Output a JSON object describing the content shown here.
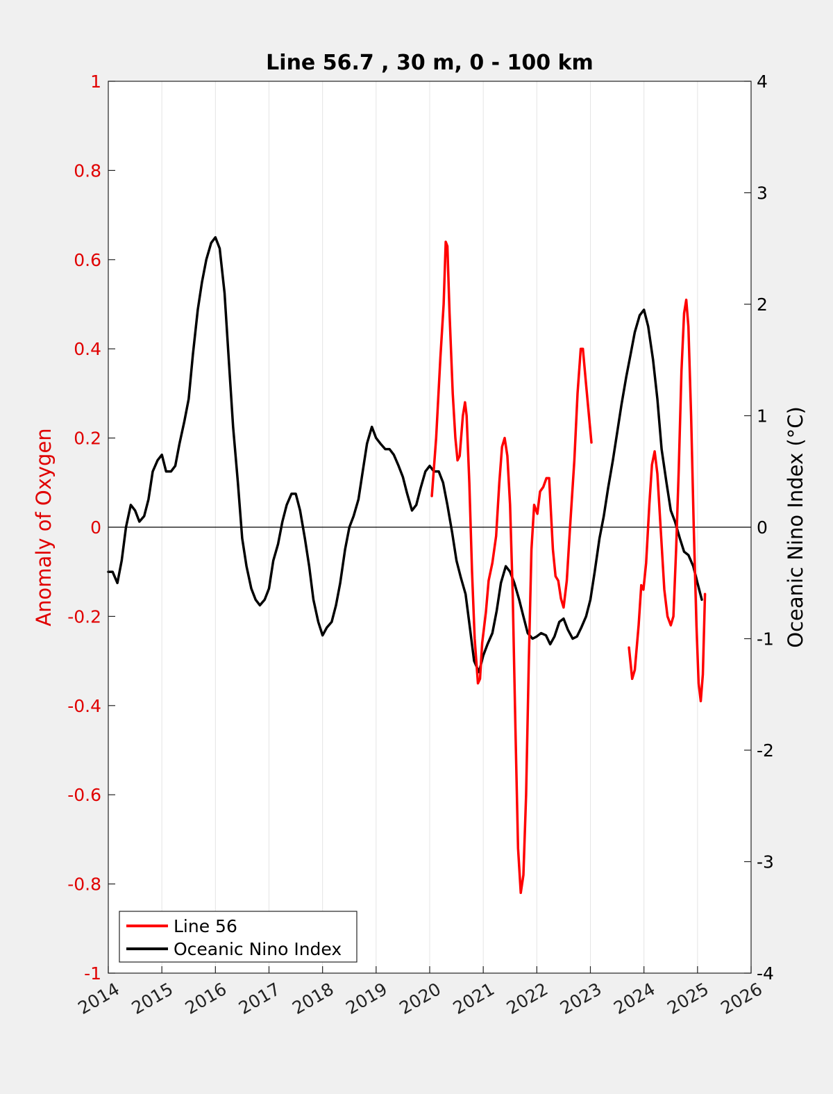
{
  "chart_data": {
    "type": "line",
    "title": "Line 56.7 , 30 m, 0 - 100 km",
    "xlabel": "",
    "ylabel_left": "Anomaly of Oxygen",
    "ylabel_right": "Oceanic Nino Index (°C)",
    "xlim": [
      2014,
      2026
    ],
    "ylim_left": [
      -1,
      1
    ],
    "ylim_right": [
      -4,
      4
    ],
    "x_ticks": [
      "2014",
      "2015",
      "2016",
      "2017",
      "2018",
      "2019",
      "2020",
      "2021",
      "2022",
      "2023",
      "2024",
      "2025",
      "2026"
    ],
    "y_ticks_left": [
      "-1",
      "-0.8",
      "-0.6",
      "-0.4",
      "-0.2",
      "0",
      "0.2",
      "0.4",
      "0.6",
      "0.8",
      "1"
    ],
    "y_ticks_right": [
      "-4",
      "-3",
      "-2",
      "-1",
      "0",
      "1",
      "2",
      "3",
      "4"
    ],
    "grid": "vertical",
    "zero_line": true,
    "legend_position": "bottom-left",
    "series": [
      {
        "name": "Line 56",
        "axis": "left",
        "color": "#ff0000",
        "segments": [
          [
            [
              2020.04,
              0.07
            ],
            [
              2020.12,
              0.2
            ],
            [
              2020.2,
              0.38
            ],
            [
              2020.26,
              0.5
            ],
            [
              2020.3,
              0.64
            ],
            [
              2020.33,
              0.63
            ],
            [
              2020.37,
              0.48
            ],
            [
              2020.43,
              0.3
            ],
            [
              2020.48,
              0.2
            ],
            [
              2020.52,
              0.15
            ],
            [
              2020.56,
              0.16
            ],
            [
              2020.62,
              0.25
            ],
            [
              2020.66,
              0.28
            ],
            [
              2020.69,
              0.25
            ],
            [
              2020.74,
              0.1
            ],
            [
              2020.79,
              -0.1
            ],
            [
              2020.84,
              -0.25
            ],
            [
              2020.9,
              -0.35
            ],
            [
              2020.94,
              -0.34
            ],
            [
              2020.98,
              -0.26
            ],
            [
              2021.05,
              -0.19
            ],
            [
              2021.1,
              -0.12
            ],
            [
              2021.17,
              -0.08
            ],
            [
              2021.24,
              -0.02
            ],
            [
              2021.3,
              0.1
            ],
            [
              2021.35,
              0.18
            ],
            [
              2021.4,
              0.2
            ],
            [
              2021.45,
              0.16
            ],
            [
              2021.5,
              0.05
            ],
            [
              2021.55,
              -0.15
            ],
            [
              2021.6,
              -0.45
            ],
            [
              2021.65,
              -0.72
            ],
            [
              2021.7,
              -0.82
            ],
            [
              2021.75,
              -0.78
            ],
            [
              2021.8,
              -0.6
            ],
            [
              2021.85,
              -0.3
            ],
            [
              2021.9,
              -0.05
            ],
            [
              2021.95,
              0.05
            ],
            [
              2022.01,
              0.03
            ],
            [
              2022.06,
              0.08
            ],
            [
              2022.12,
              0.09
            ],
            [
              2022.18,
              0.11
            ],
            [
              2022.23,
              0.11
            ],
            [
              2022.3,
              -0.05
            ],
            [
              2022.35,
              -0.11
            ],
            [
              2022.4,
              -0.12
            ],
            [
              2022.45,
              -0.16
            ],
            [
              2022.5,
              -0.18
            ],
            [
              2022.56,
              -0.12
            ],
            [
              2022.62,
              0.0
            ],
            [
              2022.7,
              0.15
            ],
            [
              2022.76,
              0.3
            ],
            [
              2022.82,
              0.4
            ],
            [
              2022.86,
              0.4
            ],
            [
              2022.92,
              0.32
            ],
            [
              2023.02,
              0.19
            ]
          ],
          [
            [
              2023.72,
              -0.27
            ],
            [
              2023.78,
              -0.34
            ],
            [
              2023.83,
              -0.32
            ],
            [
              2023.9,
              -0.22
            ],
            [
              2023.95,
              -0.13
            ],
            [
              2023.99,
              -0.14
            ],
            [
              2024.04,
              -0.08
            ],
            [
              2024.1,
              0.05
            ],
            [
              2024.15,
              0.14
            ],
            [
              2024.2,
              0.17
            ],
            [
              2024.25,
              0.12
            ],
            [
              2024.32,
              -0.02
            ],
            [
              2024.38,
              -0.14
            ],
            [
              2024.44,
              -0.2
            ],
            [
              2024.5,
              -0.22
            ],
            [
              2024.55,
              -0.2
            ],
            [
              2024.6,
              -0.05
            ],
            [
              2024.65,
              0.13
            ],
            [
              2024.7,
              0.35
            ],
            [
              2024.75,
              0.48
            ],
            [
              2024.79,
              0.51
            ],
            [
              2024.83,
              0.45
            ],
            [
              2024.88,
              0.25
            ],
            [
              2024.93,
              0.0
            ],
            [
              2024.98,
              -0.22
            ],
            [
              2025.02,
              -0.35
            ],
            [
              2025.06,
              -0.39
            ],
            [
              2025.1,
              -0.33
            ],
            [
              2025.14,
              -0.15
            ]
          ]
        ]
      },
      {
        "name": "Oceanic Nino Index",
        "axis": "right",
        "color": "#000000",
        "points": [
          [
            2014.0,
            -0.4
          ],
          [
            2014.08,
            -0.4
          ],
          [
            2014.17,
            -0.5
          ],
          [
            2014.25,
            -0.3
          ],
          [
            2014.33,
            0.0
          ],
          [
            2014.42,
            0.2
          ],
          [
            2014.5,
            0.15
          ],
          [
            2014.58,
            0.05
          ],
          [
            2014.67,
            0.1
          ],
          [
            2014.75,
            0.25
          ],
          [
            2014.83,
            0.5
          ],
          [
            2014.92,
            0.6
          ],
          [
            2015.0,
            0.65
          ],
          [
            2015.08,
            0.5
          ],
          [
            2015.17,
            0.5
          ],
          [
            2015.25,
            0.55
          ],
          [
            2015.33,
            0.75
          ],
          [
            2015.42,
            0.95
          ],
          [
            2015.5,
            1.15
          ],
          [
            2015.58,
            1.55
          ],
          [
            2015.67,
            1.95
          ],
          [
            2015.75,
            2.2
          ],
          [
            2015.83,
            2.4
          ],
          [
            2015.92,
            2.55
          ],
          [
            2016.0,
            2.6
          ],
          [
            2016.08,
            2.5
          ],
          [
            2016.17,
            2.1
          ],
          [
            2016.25,
            1.5
          ],
          [
            2016.33,
            0.9
          ],
          [
            2016.42,
            0.4
          ],
          [
            2016.5,
            -0.1
          ],
          [
            2016.58,
            -0.35
          ],
          [
            2016.67,
            -0.55
          ],
          [
            2016.75,
            -0.65
          ],
          [
            2016.83,
            -0.7
          ],
          [
            2016.92,
            -0.65
          ],
          [
            2017.0,
            -0.55
          ],
          [
            2017.08,
            -0.3
          ],
          [
            2017.17,
            -0.15
          ],
          [
            2017.25,
            0.05
          ],
          [
            2017.33,
            0.2
          ],
          [
            2017.42,
            0.3
          ],
          [
            2017.5,
            0.3
          ],
          [
            2017.58,
            0.15
          ],
          [
            2017.67,
            -0.1
          ],
          [
            2017.75,
            -0.35
          ],
          [
            2017.83,
            -0.65
          ],
          [
            2017.92,
            -0.85
          ],
          [
            2018.0,
            -0.97
          ],
          [
            2018.08,
            -0.9
          ],
          [
            2018.17,
            -0.85
          ],
          [
            2018.25,
            -0.7
          ],
          [
            2018.33,
            -0.5
          ],
          [
            2018.42,
            -0.2
          ],
          [
            2018.5,
            0.0
          ],
          [
            2018.58,
            0.1
          ],
          [
            2018.67,
            0.25
          ],
          [
            2018.75,
            0.5
          ],
          [
            2018.83,
            0.75
          ],
          [
            2018.92,
            0.9
          ],
          [
            2019.0,
            0.8
          ],
          [
            2019.08,
            0.75
          ],
          [
            2019.17,
            0.7
          ],
          [
            2019.25,
            0.7
          ],
          [
            2019.33,
            0.65
          ],
          [
            2019.42,
            0.55
          ],
          [
            2019.5,
            0.45
          ],
          [
            2019.58,
            0.3
          ],
          [
            2019.67,
            0.15
          ],
          [
            2019.75,
            0.2
          ],
          [
            2019.83,
            0.35
          ],
          [
            2019.92,
            0.5
          ],
          [
            2020.0,
            0.55
          ],
          [
            2020.08,
            0.5
          ],
          [
            2020.17,
            0.5
          ],
          [
            2020.25,
            0.4
          ],
          [
            2020.33,
            0.2
          ],
          [
            2020.42,
            -0.05
          ],
          [
            2020.5,
            -0.3
          ],
          [
            2020.58,
            -0.45
          ],
          [
            2020.67,
            -0.6
          ],
          [
            2020.75,
            -0.9
          ],
          [
            2020.83,
            -1.2
          ],
          [
            2020.92,
            -1.3
          ],
          [
            2021.0,
            -1.15
          ],
          [
            2021.08,
            -1.05
          ],
          [
            2021.17,
            -0.95
          ],
          [
            2021.25,
            -0.75
          ],
          [
            2021.33,
            -0.5
          ],
          [
            2021.42,
            -0.35
          ],
          [
            2021.5,
            -0.4
          ],
          [
            2021.58,
            -0.5
          ],
          [
            2021.67,
            -0.65
          ],
          [
            2021.75,
            -0.8
          ],
          [
            2021.83,
            -0.95
          ],
          [
            2021.92,
            -1.0
          ],
          [
            2022.0,
            -0.98
          ],
          [
            2022.08,
            -0.95
          ],
          [
            2022.17,
            -0.97
          ],
          [
            2022.25,
            -1.05
          ],
          [
            2022.33,
            -0.98
          ],
          [
            2022.42,
            -0.85
          ],
          [
            2022.5,
            -0.82
          ],
          [
            2022.58,
            -0.92
          ],
          [
            2022.67,
            -1.0
          ],
          [
            2022.75,
            -0.98
          ],
          [
            2022.83,
            -0.9
          ],
          [
            2022.92,
            -0.8
          ],
          [
            2023.0,
            -0.65
          ],
          [
            2023.08,
            -0.4
          ],
          [
            2023.17,
            -0.1
          ],
          [
            2023.25,
            0.1
          ],
          [
            2023.33,
            0.35
          ],
          [
            2023.42,
            0.6
          ],
          [
            2023.5,
            0.85
          ],
          [
            2023.58,
            1.1
          ],
          [
            2023.67,
            1.35
          ],
          [
            2023.75,
            1.55
          ],
          [
            2023.83,
            1.75
          ],
          [
            2023.92,
            1.9
          ],
          [
            2024.0,
            1.95
          ],
          [
            2024.08,
            1.8
          ],
          [
            2024.17,
            1.5
          ],
          [
            2024.25,
            1.15
          ],
          [
            2024.33,
            0.7
          ],
          [
            2024.42,
            0.4
          ],
          [
            2024.5,
            0.15
          ],
          [
            2024.58,
            0.05
          ],
          [
            2024.67,
            -0.1
          ],
          [
            2024.75,
            -0.22
          ],
          [
            2024.83,
            -0.25
          ],
          [
            2024.92,
            -0.35
          ],
          [
            2025.0,
            -0.5
          ],
          [
            2025.08,
            -0.65
          ]
        ]
      }
    ]
  }
}
